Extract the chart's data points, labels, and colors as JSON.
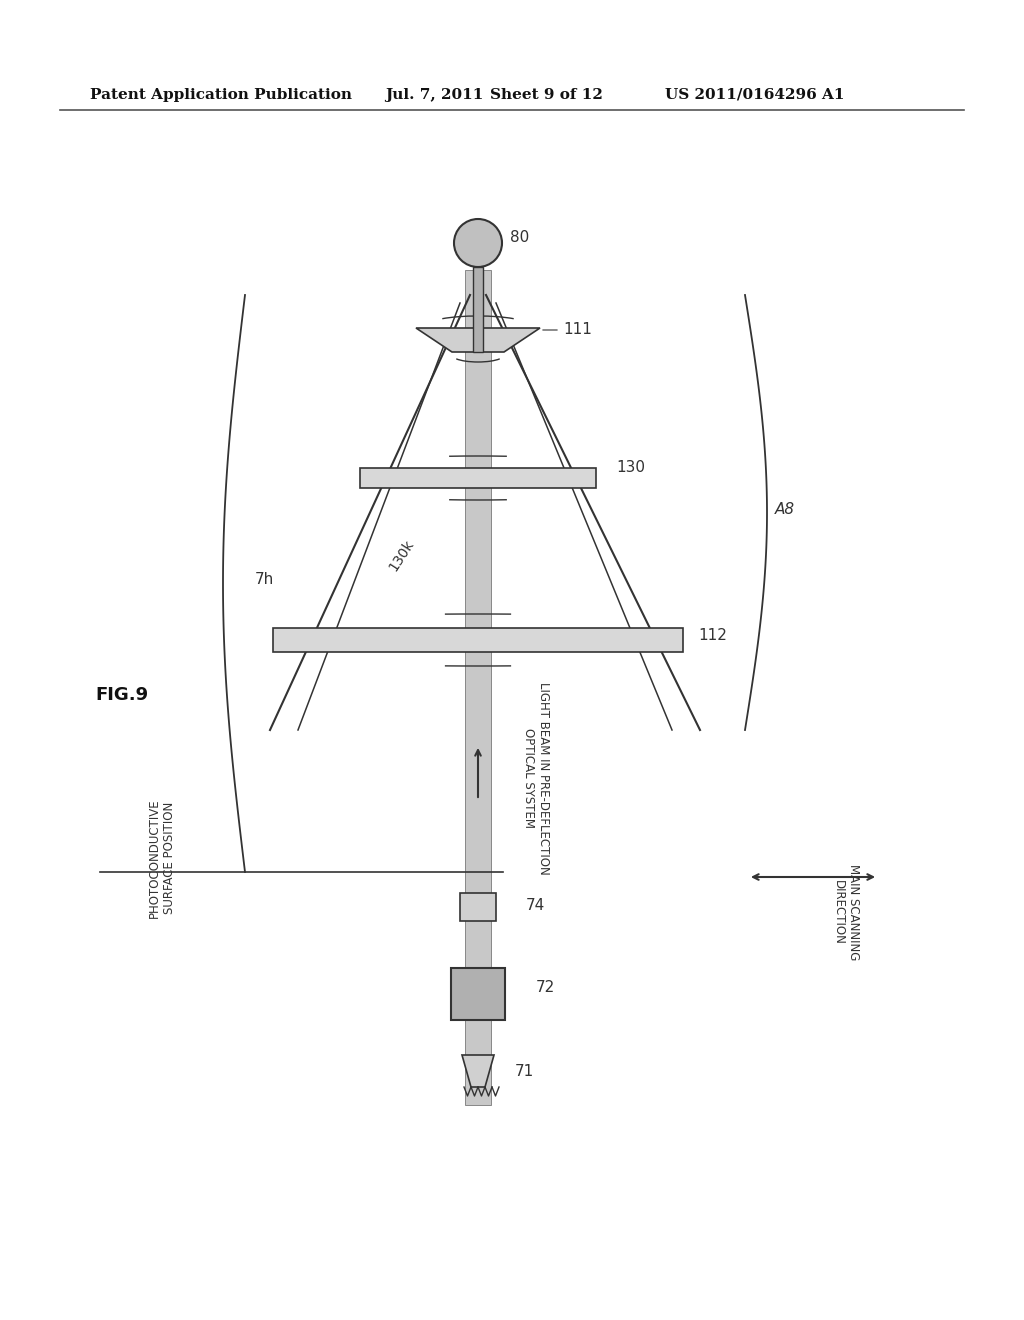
{
  "bg_color": "#ffffff",
  "header_text": "Patent Application Publication",
  "header_date": "Jul. 7, 2011",
  "header_sheet": "Sheet 9 of 12",
  "header_patent": "US 2011/0164296 A1",
  "fig_label": "FIG.9",
  "label_80": "80",
  "label_111": "111",
  "label_130": "130",
  "label_130k": "130k",
  "label_112": "112",
  "label_A8": "A8",
  "label_7h": "7h",
  "label_74": "74",
  "label_72": "72",
  "label_71": "71",
  "label_light_beam": "LIGHT BEAM IN PRE-DEFLECTION\nOPTICAL SYSTEM",
  "label_photoconductive": "PHOTOCONDUCTIVE\nSURFACE POSITION",
  "label_main_scanning": "MAIN SCANNING\nDIRECTION",
  "line_color": "#333333",
  "gray_color": "#aaaaaa",
  "dark_gray": "#888888"
}
